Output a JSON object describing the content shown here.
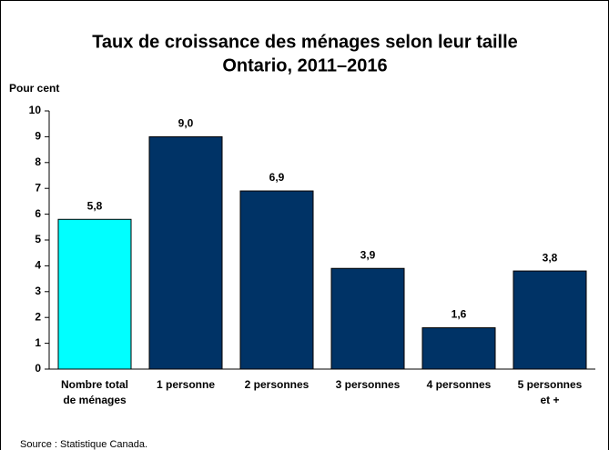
{
  "chart_data": {
    "type": "bar",
    "title": "Taux de croissance des ménages selon leur taille",
    "subtitle": "Ontario, 2011–2016",
    "y_label": "Pour cent",
    "categories": [
      "Nombre total de ménages",
      "1 personne",
      "2 personnes",
      "3 personnes",
      "4 personnes",
      "5 personnes et +"
    ],
    "values": [
      5.8,
      9.0,
      6.9,
      3.9,
      1.6,
      3.8
    ],
    "value_labels": [
      "5,8",
      "9,0",
      "6,9",
      "3,9",
      "1,6",
      "3,8"
    ],
    "colors": [
      "#00ffff",
      "#003366",
      "#003366",
      "#003366",
      "#003366",
      "#003366"
    ],
    "ylim": [
      0,
      10
    ],
    "yticks": [
      0,
      1,
      2,
      3,
      4,
      5,
      6,
      7,
      8,
      9,
      10
    ],
    "grid": false,
    "source": "Source : Statistique Canada."
  }
}
